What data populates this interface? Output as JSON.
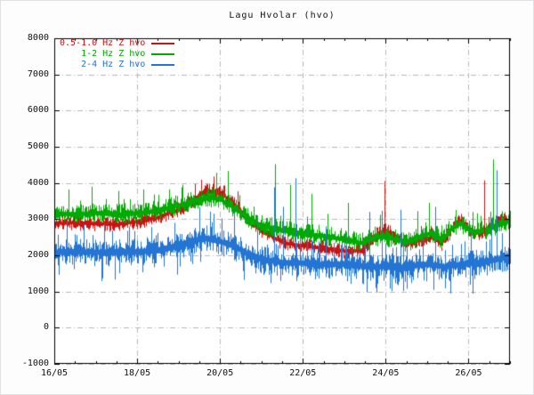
{
  "page": {
    "background": "#fdfdfd"
  },
  "chart_data": {
    "type": "line",
    "title": "Lagu Hvolar (hvo)",
    "grid": {
      "enabled": true,
      "style": "dash-dot",
      "color": "#b9b9b9"
    },
    "frame_color": "#000000",
    "legend_position": "top-left",
    "x_axis": {
      "start_day": 16,
      "end_day": 27,
      "minor_tick_interval_days": 0.5,
      "ticks": [
        {
          "label": "16/05",
          "day": 16
        },
        {
          "label": "18/05",
          "day": 18
        },
        {
          "label": "20/05",
          "day": 20
        },
        {
          "label": "22/05",
          "day": 22
        },
        {
          "label": "24/05",
          "day": 24
        },
        {
          "label": "26/05",
          "day": 26
        }
      ]
    },
    "y_axis": {
      "min": -1000,
      "max": 8000,
      "tick_interval": 1000,
      "ticks": [
        {
          "label": "8000",
          "value": 8000
        },
        {
          "label": "7000",
          "value": 7000
        },
        {
          "label": "6000",
          "value": 6000
        },
        {
          "label": "5000",
          "value": 5000
        },
        {
          "label": "4000",
          "value": 4000
        },
        {
          "label": "3000",
          "value": 3000
        },
        {
          "label": "2000",
          "value": 2000
        },
        {
          "label": "1000",
          "value": 1000
        },
        {
          "label": "0",
          "value": 0
        },
        {
          "label": "-1000",
          "value": -1000
        }
      ]
    },
    "series": [
      {
        "name": "0.5-1.0 Hz Z hvo",
        "color": "#cc1111",
        "seed": 42,
        "noise_low": 160,
        "noise_high": 160,
        "spike_prob": 0.03,
        "down_prob": 0,
        "backbone": [
          [
            16,
            2880
          ],
          [
            16.5,
            2900
          ],
          [
            17,
            2880
          ],
          [
            17.5,
            2850
          ],
          [
            18,
            2930
          ],
          [
            18.5,
            3050
          ],
          [
            19,
            3260
          ],
          [
            19.4,
            3560
          ],
          [
            19.7,
            3780
          ],
          [
            20,
            3740
          ],
          [
            20.3,
            3440
          ],
          [
            20.7,
            2980
          ],
          [
            21,
            2700
          ],
          [
            21.5,
            2350
          ],
          [
            22,
            2260
          ],
          [
            22.5,
            2200
          ],
          [
            23,
            2120
          ],
          [
            23.4,
            2130
          ],
          [
            23.7,
            2520
          ],
          [
            24,
            2700
          ],
          [
            24.2,
            2550
          ],
          [
            24.5,
            2300
          ],
          [
            24.8,
            2420
          ],
          [
            25.1,
            2480
          ],
          [
            25.35,
            2330
          ],
          [
            25.6,
            2750
          ],
          [
            25.8,
            2950
          ],
          [
            26.1,
            2600
          ],
          [
            26.35,
            2650
          ],
          [
            26.6,
            2820
          ],
          [
            26.85,
            2980
          ],
          [
            27,
            2950
          ]
        ],
        "spikes": [
          [
            23.96,
            4050
          ],
          [
            26.38,
            4070
          ]
        ]
      },
      {
        "name": "1-2 Hz Z hvo",
        "color": "#00aa00",
        "seed": 1337,
        "noise_low": 200,
        "noise_high": 230,
        "spike_prob": 0.06,
        "down_prob": 0,
        "backbone": [
          [
            16,
            3160
          ],
          [
            16.5,
            3120
          ],
          [
            17,
            3170
          ],
          [
            17.5,
            3120
          ],
          [
            18,
            3160
          ],
          [
            18.5,
            3230
          ],
          [
            19,
            3370
          ],
          [
            19.4,
            3520
          ],
          [
            19.7,
            3600
          ],
          [
            20,
            3540
          ],
          [
            20.3,
            3330
          ],
          [
            20.7,
            3000
          ],
          [
            21,
            2820
          ],
          [
            21.5,
            2680
          ],
          [
            22,
            2580
          ],
          [
            22.5,
            2530
          ],
          [
            23,
            2430
          ],
          [
            23.4,
            2330
          ],
          [
            23.7,
            2480
          ],
          [
            24,
            2520
          ],
          [
            24.2,
            2440
          ],
          [
            24.5,
            2360
          ],
          [
            24.8,
            2500
          ],
          [
            25.1,
            2620
          ],
          [
            25.35,
            2430
          ],
          [
            25.6,
            2750
          ],
          [
            25.8,
            2870
          ],
          [
            26.1,
            2630
          ],
          [
            26.35,
            2680
          ],
          [
            26.6,
            2780
          ],
          [
            26.85,
            2880
          ],
          [
            27,
            2960
          ]
        ],
        "spikes": [
          [
            16.35,
            3820
          ],
          [
            16.9,
            3900
          ],
          [
            17.55,
            3780
          ],
          [
            18.15,
            3820
          ],
          [
            19.1,
            3950
          ],
          [
            20.18,
            4330
          ],
          [
            21.33,
            4520
          ],
          [
            21.7,
            3950
          ],
          [
            22.2,
            3700
          ],
          [
            23.1,
            3450
          ],
          [
            25.05,
            3450
          ],
          [
            26.6,
            4650
          ]
        ]
      },
      {
        "name": "2-4 Hz Z hvo",
        "color": "#2474d4",
        "seed": 2024,
        "noise_low": 300,
        "noise_high": 260,
        "spike_prob": 0.09,
        "down_prob": 0.08,
        "backbone": [
          [
            16,
            2090
          ],
          [
            16.5,
            2110
          ],
          [
            17,
            2090
          ],
          [
            17.5,
            2080
          ],
          [
            18,
            2100
          ],
          [
            18.5,
            2150
          ],
          [
            19,
            2260
          ],
          [
            19.4,
            2430
          ],
          [
            19.7,
            2470
          ],
          [
            20,
            2380
          ],
          [
            20.3,
            2280
          ],
          [
            20.7,
            2030
          ],
          [
            21,
            1900
          ],
          [
            21.5,
            1800
          ],
          [
            22,
            1790
          ],
          [
            22.5,
            1750
          ],
          [
            23,
            1760
          ],
          [
            23.5,
            1700
          ],
          [
            24,
            1690
          ],
          [
            24.3,
            1640
          ],
          [
            24.7,
            1720
          ],
          [
            25,
            1760
          ],
          [
            25.4,
            1690
          ],
          [
            25.8,
            1740
          ],
          [
            26.1,
            1790
          ],
          [
            26.5,
            1840
          ],
          [
            26.8,
            1920
          ],
          [
            27,
            1980
          ]
        ],
        "spikes": [
          [
            16.3,
            2950
          ],
          [
            16.7,
            2850
          ],
          [
            17.2,
            2880
          ],
          [
            17.8,
            2800
          ],
          [
            18.35,
            2780
          ],
          [
            18.9,
            2900
          ],
          [
            19.5,
            3340
          ],
          [
            19.85,
            3150
          ],
          [
            20.35,
            3300
          ],
          [
            20.9,
            3100
          ],
          [
            21.3,
            3880
          ],
          [
            21.52,
            3340
          ],
          [
            21.82,
            4130
          ],
          [
            22.1,
            3070
          ],
          [
            22.55,
            2800
          ],
          [
            23.05,
            2650
          ],
          [
            23.6,
            3200
          ],
          [
            23.9,
            3230
          ],
          [
            24.35,
            3260
          ],
          [
            24.9,
            2750
          ],
          [
            25.2,
            3340
          ],
          [
            26.05,
            2700
          ],
          [
            26.55,
            3020
          ],
          [
            26.67,
            4350
          ]
        ]
      }
    ]
  }
}
